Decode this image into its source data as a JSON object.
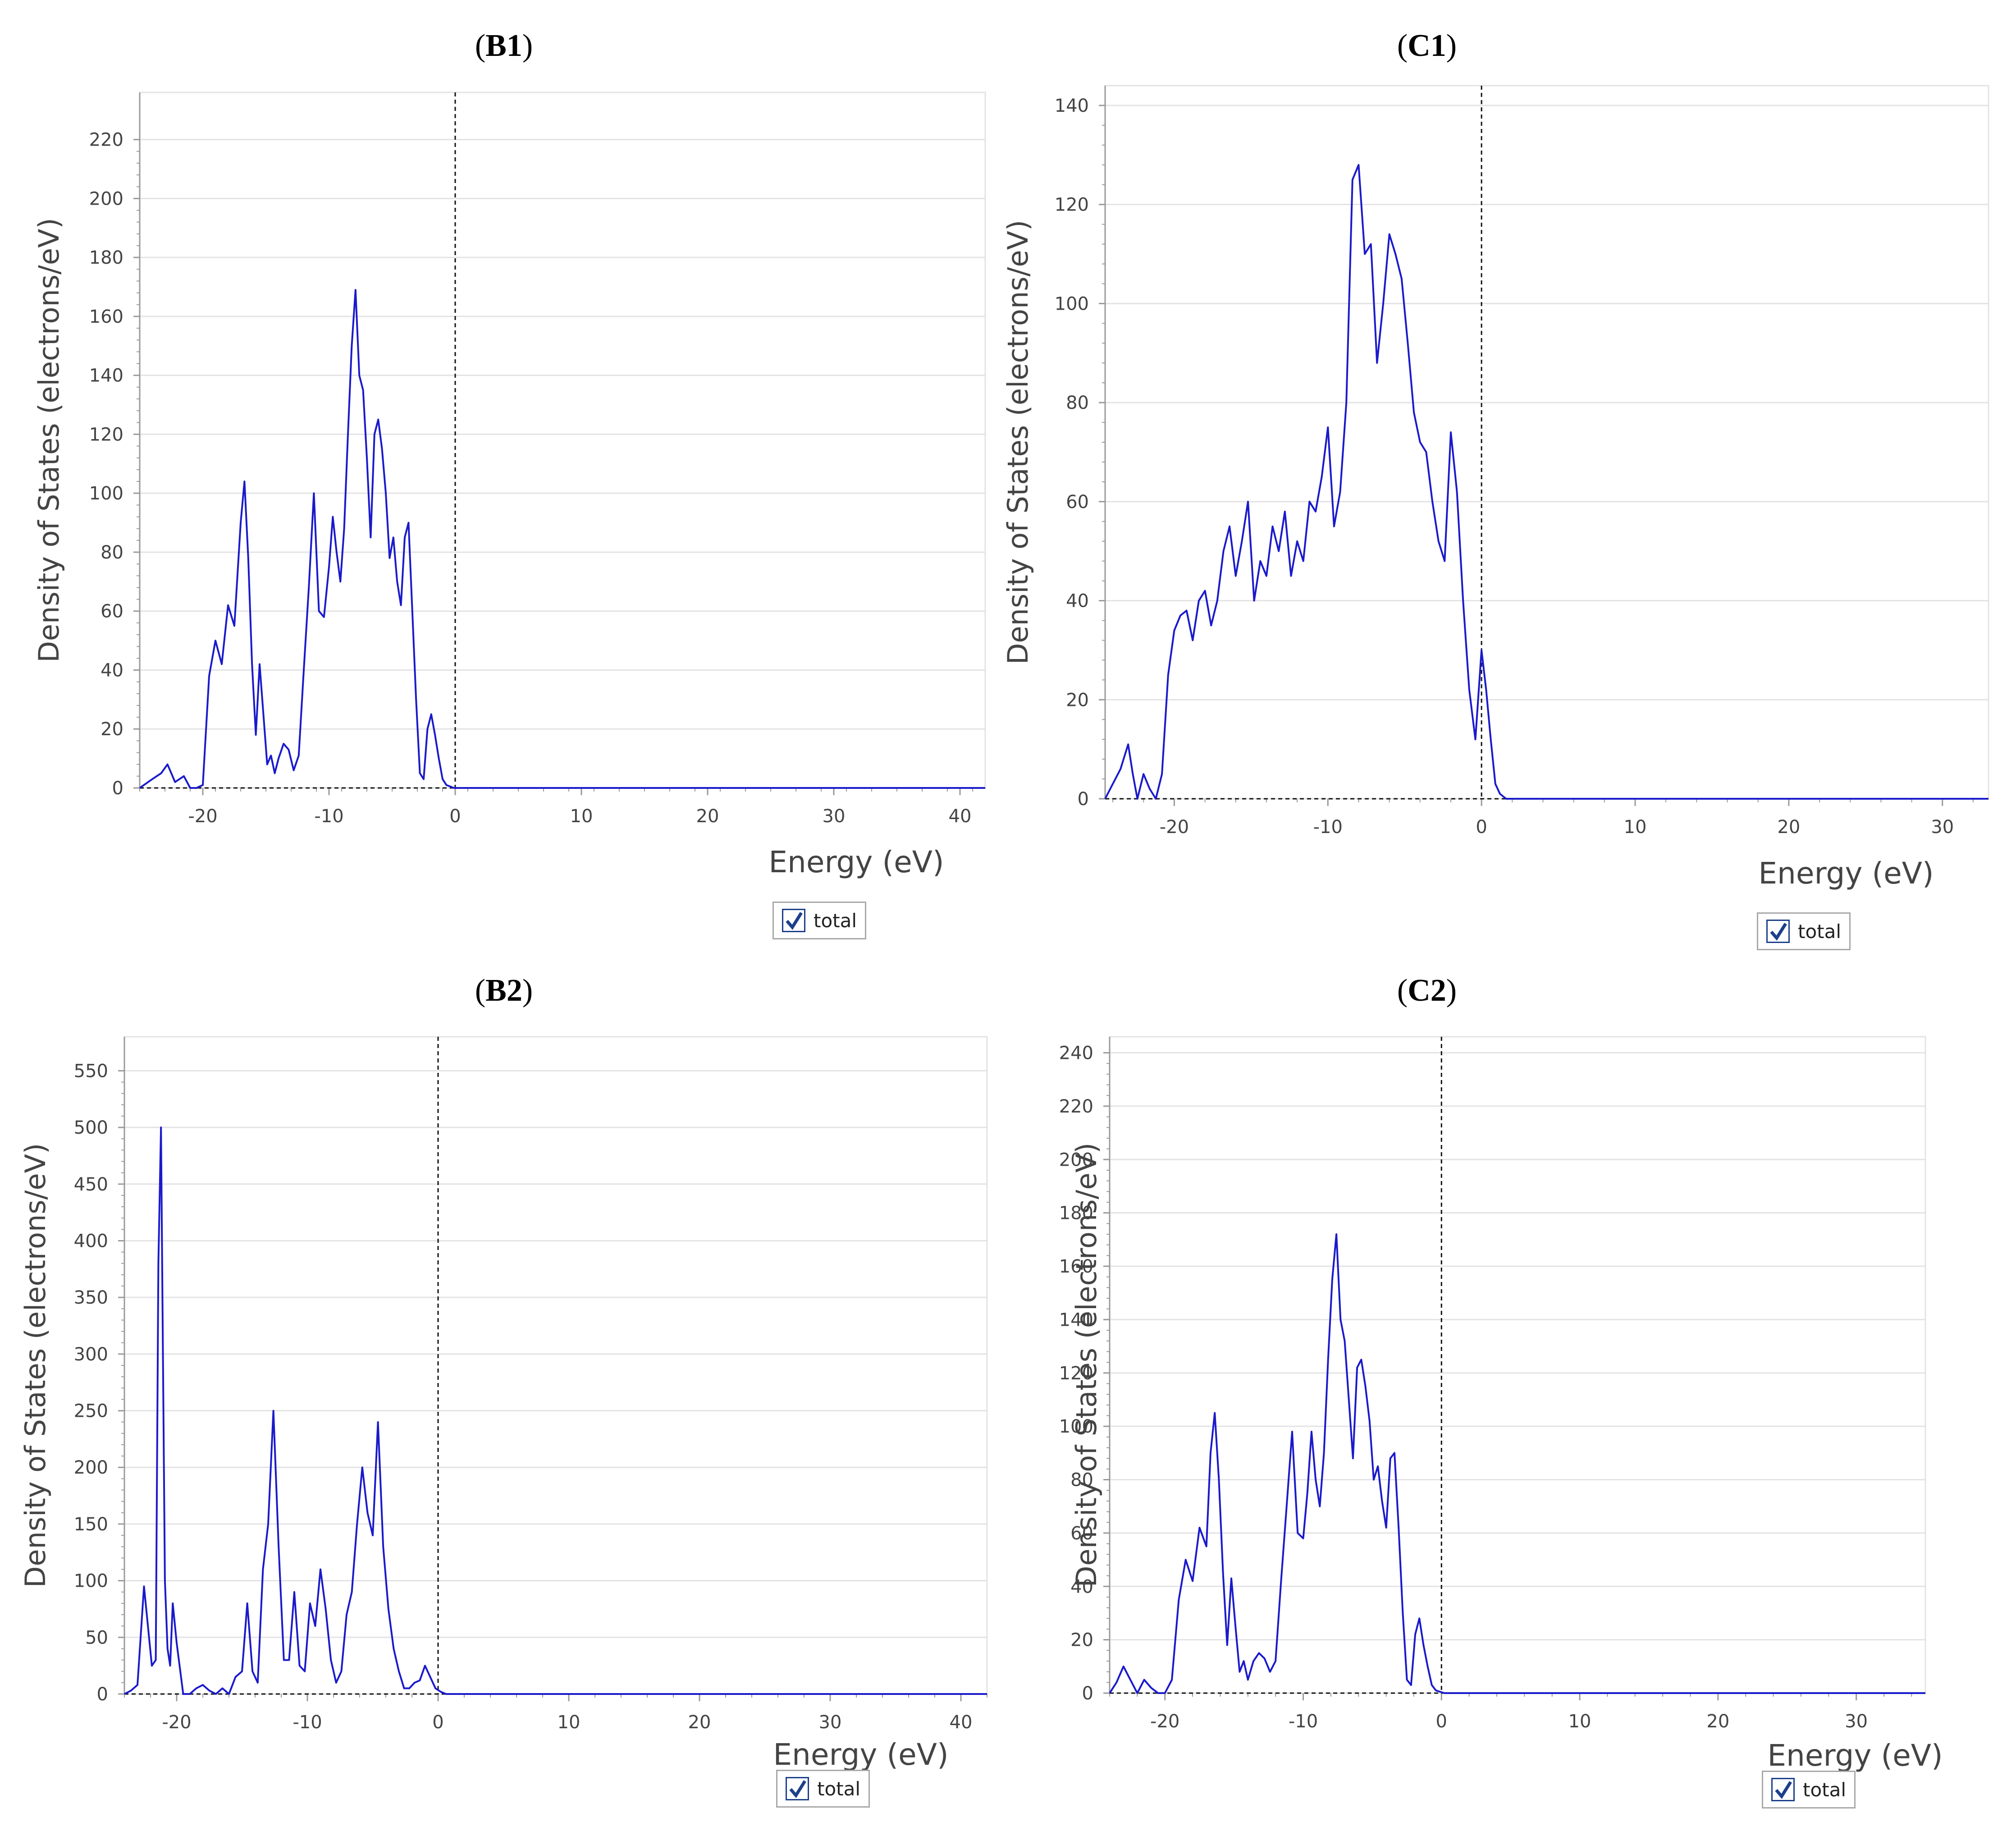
{
  "colors": {
    "series": "#1a1acc",
    "grid": "#e3e3e3",
    "axis": "#9a9a9a",
    "text": "#444444"
  },
  "legend_icon": "checkbox-checked-icon",
  "chart_data": [
    {
      "id": "B1",
      "title_label": "B1",
      "type": "line",
      "xlabel": "Energy (eV)",
      "ylabel": "Density of States (electrons/eV)",
      "xlim": [
        -25,
        42
      ],
      "ylim": [
        0,
        236
      ],
      "xticks": [
        -20,
        -10,
        0,
        10,
        20,
        30,
        40
      ],
      "yticks": [
        0,
        20,
        40,
        60,
        80,
        100,
        120,
        140,
        160,
        180,
        200,
        220
      ],
      "vline": 0,
      "legend": [
        "total"
      ],
      "series": [
        {
          "name": "total",
          "x": [
            -25,
            -24,
            -23.3,
            -22.8,
            -22.2,
            -21.5,
            -21,
            -20.5,
            -20,
            -19.5,
            -19,
            -18.5,
            -18,
            -17.5,
            -17,
            -16.7,
            -16.4,
            -16.1,
            -15.8,
            -15.5,
            -15.2,
            -14.9,
            -14.6,
            -14.3,
            -14,
            -13.6,
            -13.2,
            -12.8,
            -12.4,
            -12,
            -11.6,
            -11.2,
            -10.8,
            -10.4,
            -10,
            -9.7,
            -9.4,
            -9.1,
            -8.8,
            -8.5,
            -8.2,
            -7.9,
            -7.6,
            -7.3,
            -7,
            -6.7,
            -6.4,
            -6.1,
            -5.8,
            -5.5,
            -5.2,
            -4.9,
            -4.6,
            -4.3,
            -4,
            -3.7,
            -3.4,
            -3.1,
            -2.8,
            -2.5,
            -2.2,
            -1.9,
            -1.6,
            -1.3,
            -1,
            -0.7,
            -0.4,
            -0.1,
            0.2,
            0.5,
            0.8,
            1.1,
            1.4,
            1.8,
            2.5,
            5,
            10,
            20,
            30,
            40,
            42
          ],
          "values": [
            0,
            3,
            5,
            8,
            2,
            4,
            0,
            0,
            1,
            38,
            50,
            42,
            62,
            55,
            90,
            104,
            78,
            42,
            18,
            42,
            25,
            8,
            11,
            5,
            10,
            15,
            13,
            6,
            11,
            40,
            68,
            100,
            60,
            58,
            75,
            92,
            80,
            70,
            88,
            120,
            150,
            169,
            140,
            135,
            112,
            85,
            120,
            125,
            115,
            100,
            78,
            85,
            70,
            62,
            85,
            90,
            60,
            30,
            5,
            3,
            20,
            25,
            18,
            10,
            3,
            1,
            0.5,
            0,
            0,
            0,
            0,
            0,
            0,
            0,
            0,
            0,
            0,
            0,
            0,
            0,
            0
          ]
        }
      ]
    },
    {
      "id": "C1",
      "title_label": "C1",
      "type": "line",
      "xlabel": "Energy (eV)",
      "ylabel": "Density of States (electrons/eV)",
      "xlim": [
        -24.5,
        33
      ],
      "ylim": [
        0,
        144
      ],
      "xticks": [
        -20,
        -10,
        0,
        10,
        20,
        30
      ],
      "yticks": [
        0,
        20,
        40,
        60,
        80,
        100,
        120,
        140
      ],
      "vline": 0,
      "legend": [
        "total"
      ],
      "series": [
        {
          "name": "total",
          "x": [
            -24.5,
            -24,
            -23.5,
            -23,
            -22.7,
            -22.4,
            -22,
            -21.6,
            -21.2,
            -20.8,
            -20.4,
            -20,
            -19.6,
            -19.2,
            -18.8,
            -18.4,
            -18,
            -17.6,
            -17.2,
            -16.8,
            -16.4,
            -16,
            -15.6,
            -15.2,
            -14.8,
            -14.4,
            -14,
            -13.6,
            -13.2,
            -12.8,
            -12.4,
            -12,
            -11.6,
            -11.2,
            -10.8,
            -10.4,
            -10,
            -9.6,
            -9.2,
            -8.8,
            -8.4,
            -8,
            -7.6,
            -7.2,
            -6.8,
            -6.4,
            -6,
            -5.6,
            -5.2,
            -4.8,
            -4.4,
            -4,
            -3.6,
            -3.2,
            -2.8,
            -2.4,
            -2,
            -1.6,
            -1.2,
            -0.8,
            -0.4,
            0,
            0.3,
            0.6,
            0.9,
            1.2,
            1.6,
            2.5,
            5,
            10,
            20,
            30,
            33
          ],
          "values": [
            0,
            3,
            6,
            11,
            5,
            0,
            5,
            2,
            0,
            5,
            25,
            34,
            37,
            38,
            32,
            40,
            42,
            35,
            40,
            50,
            55,
            45,
            52,
            60,
            40,
            48,
            45,
            55,
            50,
            58,
            45,
            52,
            48,
            60,
            58,
            65,
            75,
            55,
            62,
            80,
            125,
            128,
            110,
            112,
            88,
            100,
            114,
            110,
            105,
            92,
            78,
            72,
            70,
            60,
            52,
            48,
            74,
            62,
            40,
            22,
            12,
            30,
            22,
            12,
            3,
            1,
            0,
            0,
            0,
            0,
            0,
            0,
            0
          ]
        }
      ]
    },
    {
      "id": "B2",
      "title_label": "B2",
      "type": "line",
      "xlabel": "Energy (eV)",
      "ylabel": "Density of States (electrons/eV)",
      "xlim": [
        -24,
        42
      ],
      "ylim": [
        0,
        580
      ],
      "xticks": [
        -20,
        -10,
        0,
        10,
        20,
        30,
        40
      ],
      "yticks": [
        0,
        50,
        100,
        150,
        200,
        250,
        300,
        350,
        400,
        450,
        500,
        550
      ],
      "vline": 0,
      "legend": [
        "total"
      ],
      "series": [
        {
          "name": "total",
          "x": [
            -24,
            -23.5,
            -23,
            -22.5,
            -22.2,
            -21.9,
            -21.6,
            -21.4,
            -21.2,
            -21.05,
            -20.9,
            -20.7,
            -20.5,
            -20.3,
            -20,
            -19.5,
            -19,
            -18.5,
            -18,
            -17.5,
            -17,
            -16.5,
            -16,
            -15.5,
            -15,
            -14.6,
            -14.2,
            -13.8,
            -13.4,
            -13,
            -12.6,
            -12.2,
            -11.8,
            -11.4,
            -11,
            -10.6,
            -10.2,
            -9.8,
            -9.4,
            -9,
            -8.6,
            -8.2,
            -7.8,
            -7.4,
            -7,
            -6.6,
            -6.2,
            -5.8,
            -5.4,
            -5,
            -4.6,
            -4.2,
            -3.8,
            -3.4,
            -3,
            -2.6,
            -2.2,
            -1.8,
            -1.4,
            -1,
            -0.6,
            -0.2,
            0.2,
            0.6,
            1,
            1.4,
            2,
            3,
            5,
            10,
            20,
            30,
            40,
            42
          ],
          "values": [
            0,
            3,
            8,
            95,
            60,
            25,
            30,
            380,
            500,
            300,
            100,
            40,
            25,
            80,
            45,
            0,
            0,
            5,
            8,
            3,
            0,
            5,
            0,
            15,
            20,
            80,
            20,
            10,
            110,
            150,
            250,
            130,
            30,
            30,
            90,
            25,
            20,
            80,
            60,
            110,
            75,
            30,
            10,
            20,
            70,
            90,
            150,
            200,
            160,
            140,
            240,
            130,
            75,
            40,
            20,
            5,
            5,
            10,
            12,
            25,
            15,
            5,
            2,
            0,
            0,
            0,
            0,
            0,
            0,
            0,
            0,
            0,
            0,
            0
          ]
        }
      ]
    },
    {
      "id": "C2",
      "title_label": "C2",
      "type": "line",
      "xlabel": "Energy (eV)",
      "ylabel": "Density of States (electrons/eV)",
      "xlim": [
        -24,
        35
      ],
      "ylim": [
        0,
        246
      ],
      "xticks": [
        -20,
        -10,
        0,
        10,
        20,
        30
      ],
      "yticks": [
        0,
        20,
        40,
        60,
        80,
        100,
        120,
        140,
        160,
        180,
        200,
        220,
        240
      ],
      "vline": 0,
      "legend": [
        "total"
      ],
      "series": [
        {
          "name": "total",
          "x": [
            -24,
            -23.5,
            -23,
            -22.5,
            -22,
            -21.5,
            -21,
            -20.5,
            -20,
            -19.5,
            -19,
            -18.5,
            -18,
            -17.5,
            -17,
            -16.7,
            -16.4,
            -16.1,
            -15.8,
            -15.5,
            -15.2,
            -14.9,
            -14.6,
            -14.3,
            -14,
            -13.6,
            -13.2,
            -12.8,
            -12.4,
            -12,
            -11.6,
            -11.2,
            -10.8,
            -10.4,
            -10,
            -9.7,
            -9.4,
            -9.1,
            -8.8,
            -8.5,
            -8.2,
            -7.9,
            -7.6,
            -7.3,
            -7,
            -6.7,
            -6.4,
            -6.1,
            -5.8,
            -5.5,
            -5.2,
            -4.9,
            -4.6,
            -4.3,
            -4,
            -3.7,
            -3.4,
            -3.1,
            -2.8,
            -2.5,
            -2.2,
            -1.9,
            -1.6,
            -1.3,
            -1,
            -0.7,
            -0.4,
            -0.1,
            0.2,
            0.5,
            0.8,
            1.1,
            1.4,
            1.8,
            2.5,
            5,
            10,
            20,
            30,
            35
          ],
          "values": [
            0,
            4,
            10,
            5,
            0,
            5,
            2,
            0,
            0,
            5,
            35,
            50,
            42,
            62,
            55,
            90,
            105,
            80,
            45,
            18,
            43,
            25,
            8,
            12,
            5,
            12,
            15,
            13,
            8,
            12,
            42,
            70,
            98,
            60,
            58,
            75,
            98,
            80,
            70,
            90,
            125,
            155,
            172,
            140,
            132,
            110,
            88,
            122,
            125,
            115,
            102,
            80,
            85,
            72,
            62,
            88,
            90,
            62,
            30,
            5,
            3,
            22,
            28,
            18,
            10,
            3,
            1,
            0.5,
            0,
            0,
            0,
            0,
            0,
            0,
            0,
            0,
            0,
            0,
            0,
            0
          ]
        }
      ]
    }
  ]
}
